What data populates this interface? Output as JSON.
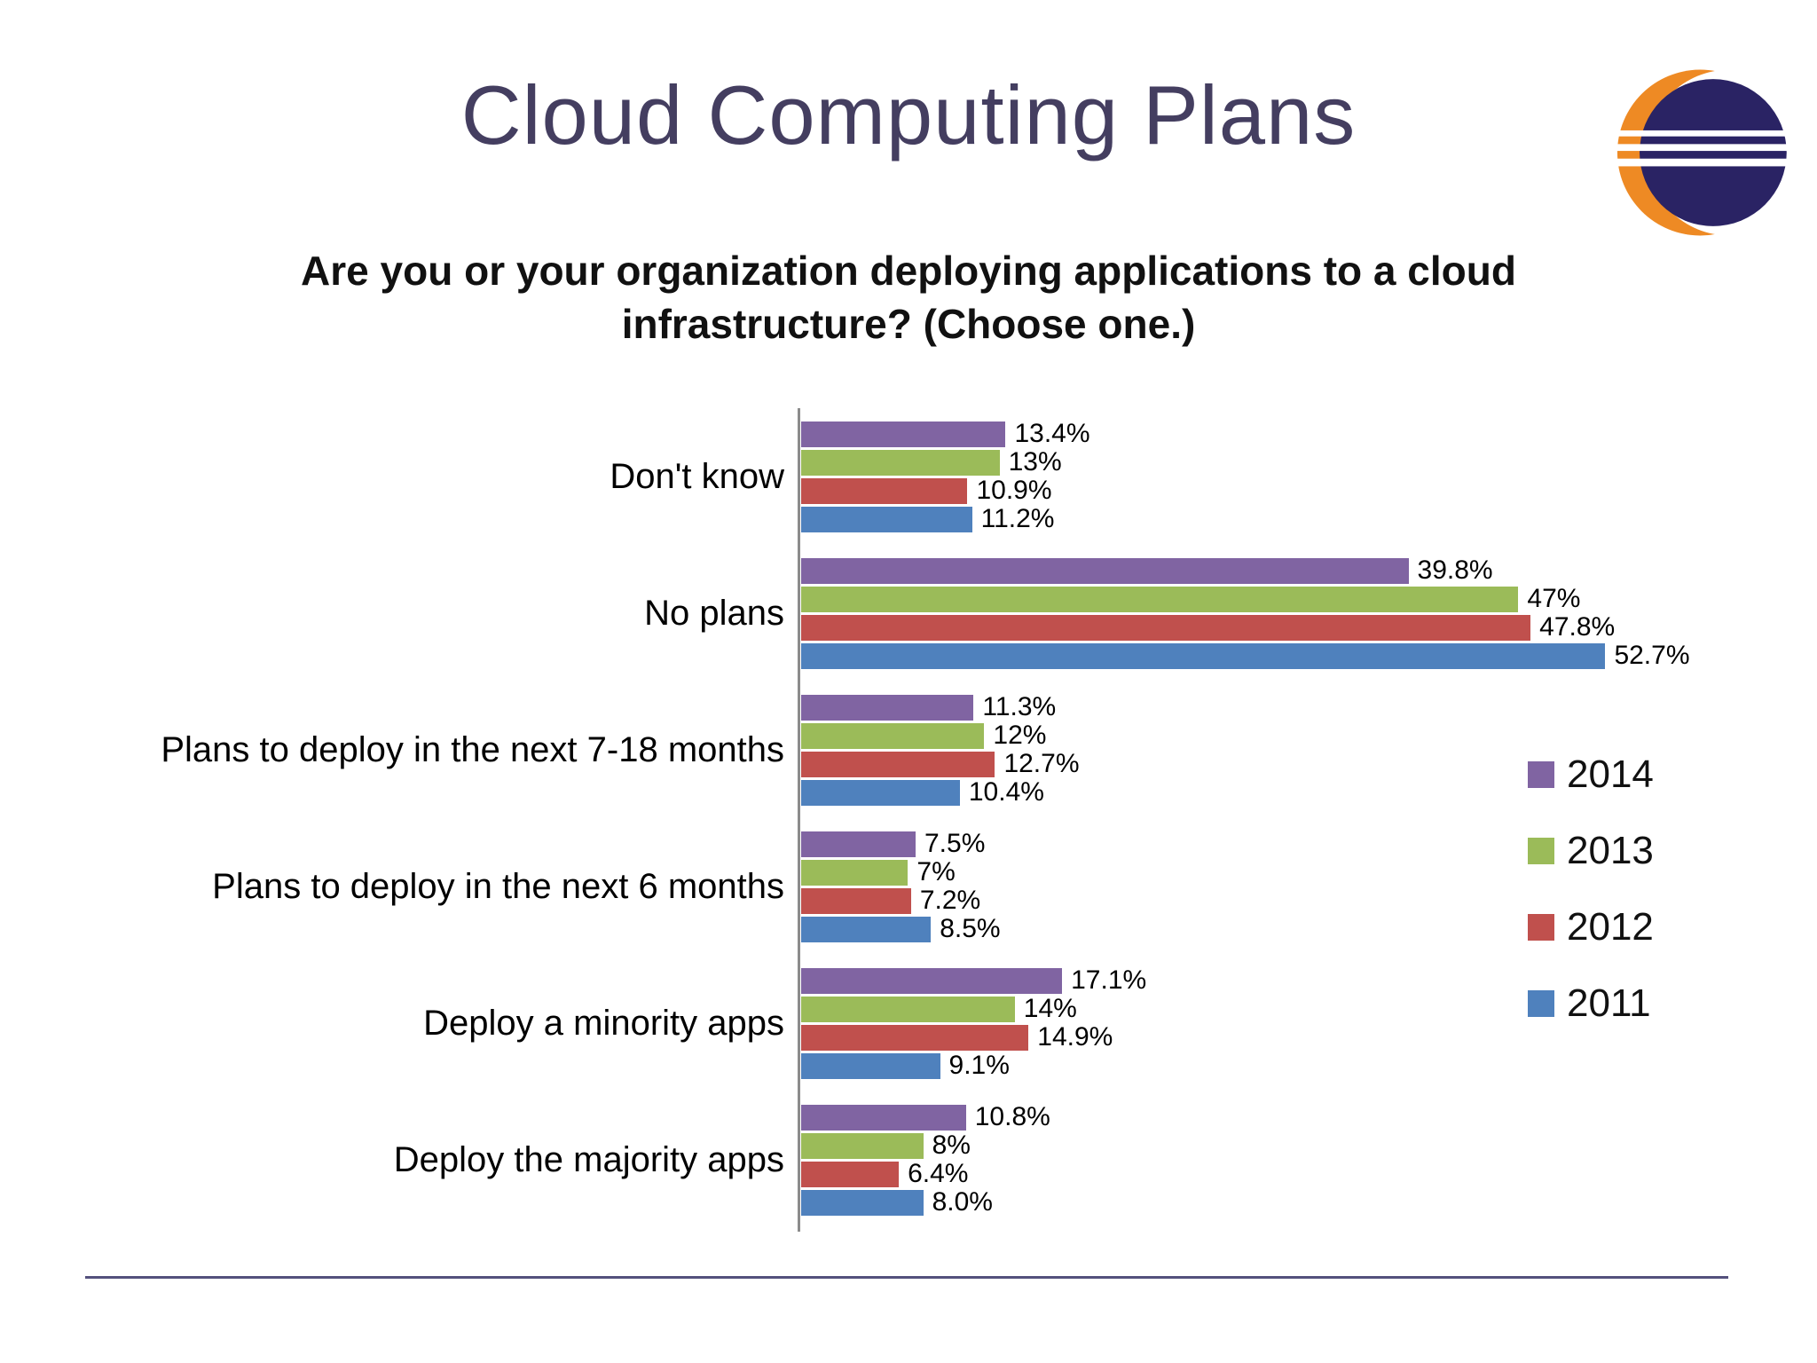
{
  "page": {
    "title": "Cloud Computing Plans",
    "subtitle": "Are you or your organization deploying applications to a cloud infrastructure? (Choose one.)"
  },
  "icons": {
    "logo": "eclipse-logo"
  },
  "colors": {
    "title_text": "#443E60",
    "divider": "#54517D",
    "logo_orange": "#EE8A24",
    "logo_navy": "#2A2364"
  },
  "chart_data": {
    "type": "bar",
    "orientation": "horizontal",
    "title": "Cloud Computing Plans",
    "subtitle": "Are you or your organization deploying applications to a cloud infrastructure? (Choose one.)",
    "categories": [
      "Don't know",
      "No plans",
      "Plans to deploy in the next 7-18 months",
      "Plans to deploy in the next 6 months",
      "Deploy a minority apps",
      "Deploy the majority apps"
    ],
    "series": [
      {
        "name": "2014",
        "color": "#8064A2",
        "values": [
          13.4,
          39.8,
          11.3,
          7.5,
          17.1,
          10.8
        ],
        "labels": [
          "13.4%",
          "39.8%",
          "11.3%",
          "7.5%",
          "17.1%",
          "10.8%"
        ]
      },
      {
        "name": "2013",
        "color": "#9BBB59",
        "values": [
          13,
          47,
          12,
          7,
          14,
          8
        ],
        "labels": [
          "13%",
          "47%",
          "12%",
          "7%",
          "14%",
          "8%"
        ]
      },
      {
        "name": "2012",
        "color": "#C0504D",
        "values": [
          10.9,
          47.8,
          12.7,
          7.2,
          14.9,
          6.4
        ],
        "labels": [
          "10.9%",
          "47.8%",
          "12.7%",
          "7.2%",
          "14.9%",
          "6.4%"
        ]
      },
      {
        "name": "2011",
        "color": "#4F81BD",
        "values": [
          11.2,
          52.7,
          10.4,
          8.5,
          9.1,
          8.0
        ],
        "labels": [
          "11.2%",
          "52.7%",
          "10.4%",
          "8.5%",
          "9.1%",
          "8.0%"
        ]
      }
    ],
    "xlim": [
      0,
      60
    ],
    "grid": false,
    "legend_position": "right",
    "value_labels": true
  }
}
